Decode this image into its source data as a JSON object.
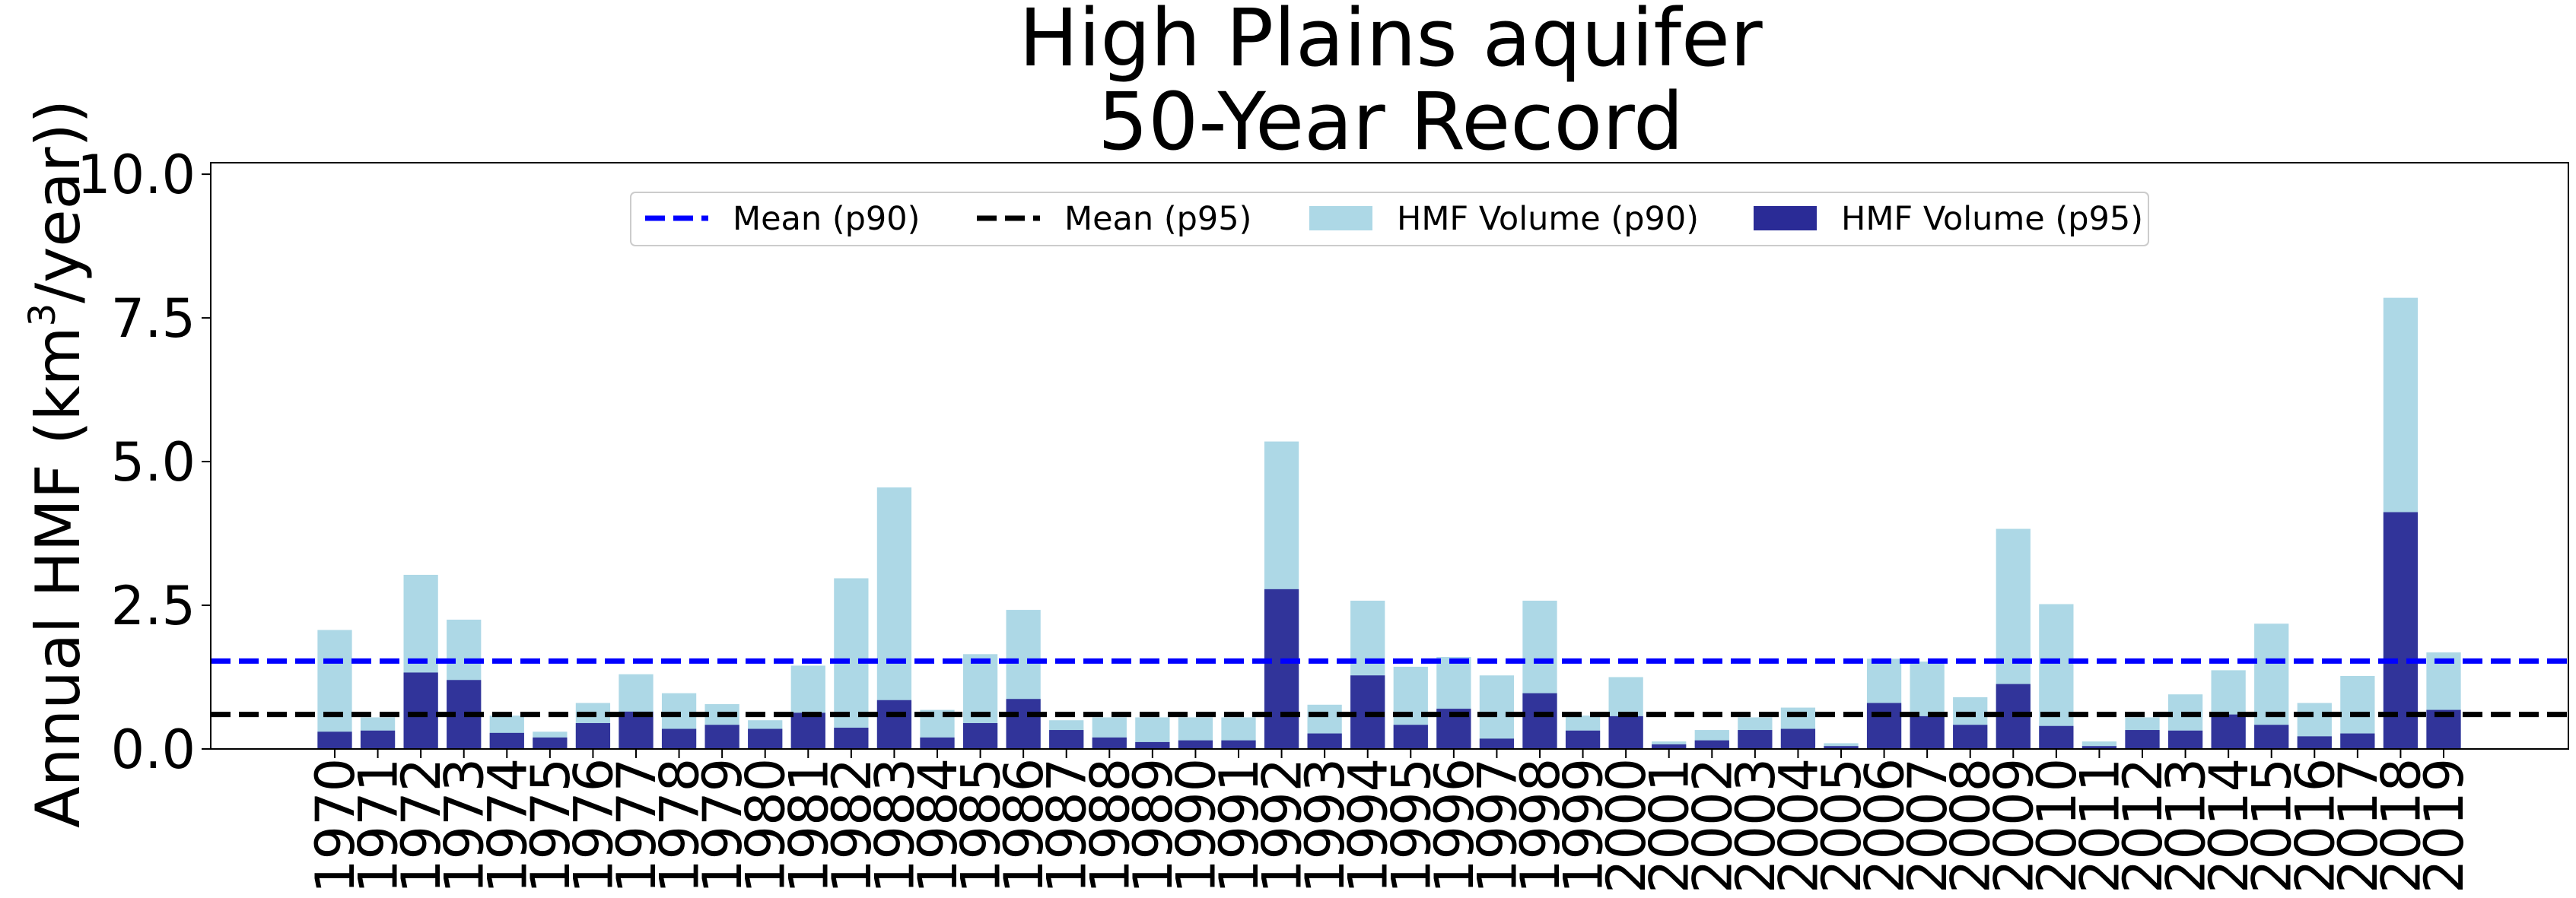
{
  "chart_data": {
    "type": "bar",
    "title_lines": [
      "High Plains aquifer",
      "50-Year Record"
    ],
    "ylabel_prefix": "Annual HMF (km",
    "ylabel_sup": "3",
    "ylabel_suffix": "/year))",
    "xlabel": "",
    "ylim": [
      0,
      10.2
    ],
    "yticks": [
      {
        "value": 0.0,
        "label": "0.0"
      },
      {
        "value": 2.5,
        "label": "2.5"
      },
      {
        "value": 5.0,
        "label": "5.0"
      },
      {
        "value": 7.5,
        "label": "7.5"
      },
      {
        "value": 10.0,
        "label": "10.0"
      }
    ],
    "grid": false,
    "legend_position": "upper-center",
    "categories": [
      "1970",
      "1971",
      "1972",
      "1973",
      "1974",
      "1975",
      "1976",
      "1977",
      "1978",
      "1979",
      "1980",
      "1981",
      "1982",
      "1983",
      "1984",
      "1985",
      "1986",
      "1987",
      "1988",
      "1989",
      "1990",
      "1991",
      "1992",
      "1993",
      "1994",
      "1995",
      "1996",
      "1997",
      "1998",
      "1999",
      "2000",
      "2001",
      "2002",
      "2003",
      "2004",
      "2005",
      "2006",
      "2007",
      "2008",
      "2009",
      "2010",
      "2011",
      "2012",
      "2013",
      "2014",
      "2015",
      "2016",
      "2017",
      "2018",
      "2019"
    ],
    "series": [
      {
        "name": "HMF Volume (p90)",
        "color": "#add8e6",
        "values": [
          2.07,
          0.55,
          3.03,
          2.25,
          0.58,
          0.3,
          0.8,
          1.3,
          0.97,
          0.78,
          0.5,
          1.45,
          2.97,
          4.55,
          0.68,
          1.65,
          2.42,
          0.5,
          0.55,
          0.55,
          0.55,
          0.55,
          5.35,
          0.77,
          2.58,
          1.43,
          1.6,
          1.28,
          2.58,
          0.58,
          1.25,
          0.13,
          0.33,
          0.55,
          0.72,
          0.1,
          1.57,
          1.52,
          0.9,
          3.83,
          2.52,
          0.13,
          0.55,
          0.95,
          1.37,
          2.18,
          0.8,
          1.27,
          7.85,
          1.68
        ]
      },
      {
        "name": "HMF Volume (p95)",
        "color": "#2a2b96",
        "values": [
          0.3,
          0.32,
          1.33,
          1.2,
          0.28,
          0.2,
          0.45,
          0.65,
          0.35,
          0.42,
          0.35,
          0.63,
          0.37,
          0.85,
          0.2,
          0.45,
          0.87,
          0.33,
          0.2,
          0.12,
          0.15,
          0.15,
          2.78,
          0.27,
          1.28,
          0.42,
          0.7,
          0.18,
          0.97,
          0.32,
          0.57,
          0.08,
          0.15,
          0.33,
          0.35,
          0.05,
          0.8,
          0.57,
          0.42,
          1.13,
          0.4,
          0.05,
          0.33,
          0.32,
          0.6,
          0.42,
          0.22,
          0.27,
          4.12,
          0.68
        ]
      }
    ],
    "mean_lines": [
      {
        "name": "Mean (p90)",
        "value": 1.53,
        "color": "#0000ff"
      },
      {
        "name": "Mean (p95)",
        "value": 0.6,
        "color": "#000000"
      }
    ]
  }
}
